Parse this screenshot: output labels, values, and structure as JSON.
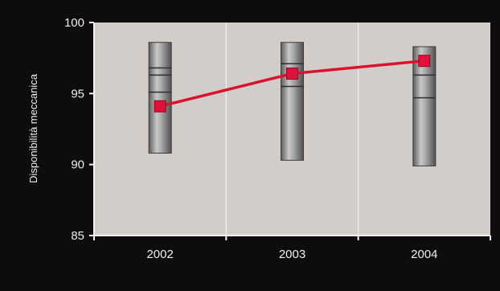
{
  "chart_data": {
    "type": "line",
    "title": "",
    "xlabel": "",
    "ylabel": "Disponibilità meccanica",
    "categories": [
      "2002",
      "2003",
      "2004"
    ],
    "ylim": [
      85,
      100
    ],
    "yticks": [
      85,
      90,
      95,
      100
    ],
    "series": [
      {
        "values": [
          94.1,
          96.4,
          97.3
        ]
      }
    ],
    "ranges": [
      {
        "category": "2002",
        "min": 90.8,
        "max": 98.6,
        "bands": [
          96.8,
          96.3,
          95.1
        ]
      },
      {
        "category": "2003",
        "min": 90.3,
        "max": 98.6,
        "bands": [
          97.1,
          95.5
        ]
      },
      {
        "category": "2004",
        "min": 89.9,
        "max": 98.3,
        "bands": [
          96.3,
          94.7
        ]
      }
    ],
    "grid": "vertical",
    "colors": {
      "background": "#0e0c0c",
      "plot": "#d2cdc9",
      "line": "#d8132f",
      "marker": "#e0113a",
      "bar": "#8e8e8e"
    }
  }
}
